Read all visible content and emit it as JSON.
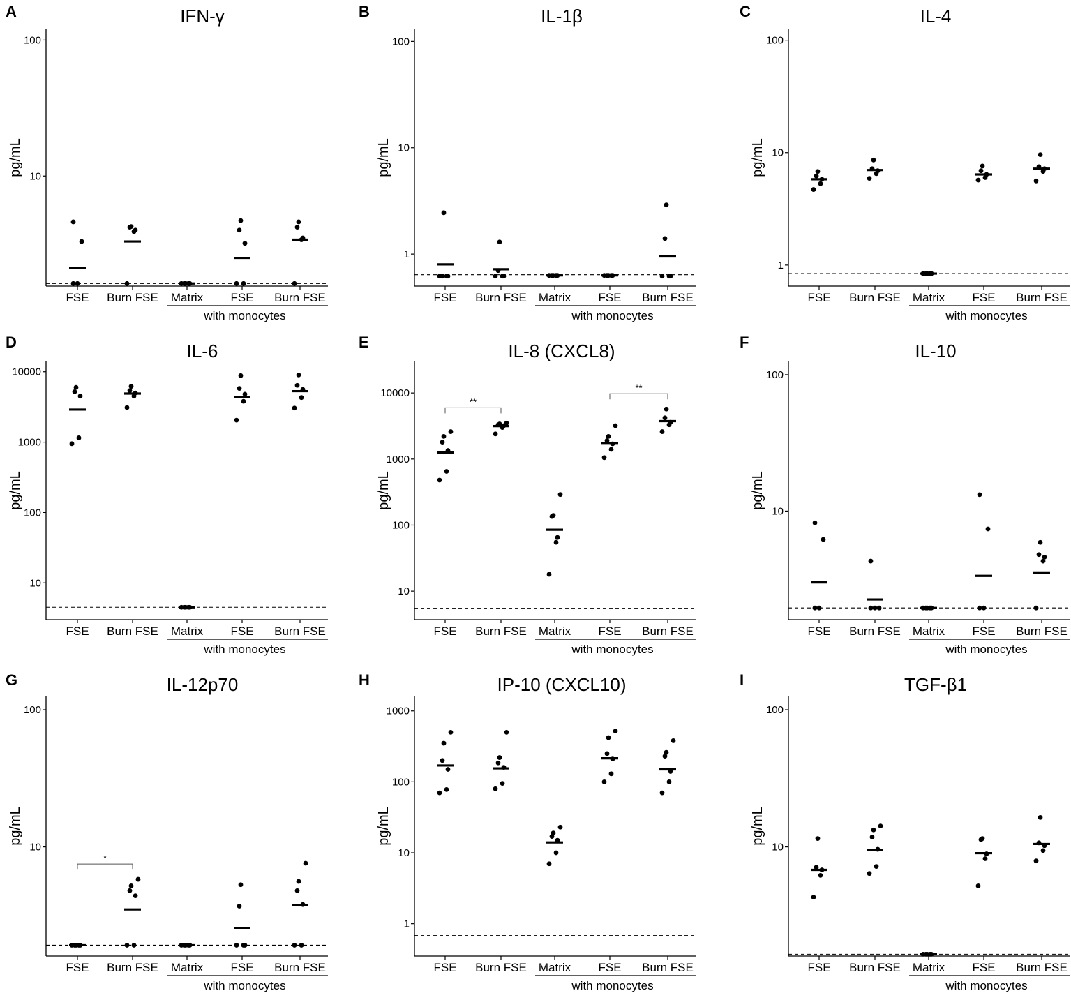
{
  "figure": {
    "x_categories": [
      "FSE",
      "Burn FSE",
      "Matrix",
      "FSE",
      "Burn FSE"
    ],
    "group_label": "with monocytes"
  },
  "chart_data": [
    {
      "type": "scatter",
      "panel": "A",
      "title": "IFN-γ",
      "ylabel": "pg/mL",
      "scale": "log",
      "ylim": [
        1.55,
        120
      ],
      "yticks": [
        {
          "v": 10,
          "label": "10"
        },
        {
          "v": 100,
          "label": "100"
        }
      ],
      "lod": 1.62,
      "groups": [
        {
          "x": "FSE",
          "points": [
            1.62,
            1.62,
            3.3,
            4.6
          ],
          "median": 2.1
        },
        {
          "x": "Burn FSE",
          "points": [
            1.62,
            3.9,
            4.0,
            4.2,
            4.25
          ],
          "median": 3.3
        },
        {
          "x": "Matrix",
          "points": [
            1.62,
            1.62,
            1.62,
            1.62,
            1.62
          ],
          "median": 1.62
        },
        {
          "x": "FSE",
          "points": [
            1.62,
            1.62,
            3.2,
            4.0,
            4.7
          ],
          "median": 2.5
        },
        {
          "x": "Burn FSE",
          "points": [
            1.62,
            3.4,
            3.5,
            4.2,
            4.6
          ],
          "median": 3.4
        }
      ],
      "significance": []
    },
    {
      "type": "scatter",
      "panel": "B",
      "title": "IL-1β",
      "ylabel": "pg/mL",
      "scale": "log",
      "ylim": [
        0.5,
        130
      ],
      "yticks": [
        {
          "v": 1,
          "label": "1"
        },
        {
          "v": 10,
          "label": "10"
        },
        {
          "v": 100,
          "label": "100"
        }
      ],
      "lod": 0.64,
      "groups": [
        {
          "x": "FSE",
          "points": [
            0.62,
            0.62,
            0.62,
            0.62,
            2.45
          ],
          "median": 0.8
        },
        {
          "x": "Burn FSE",
          "points": [
            0.62,
            0.62,
            0.62,
            0.7,
            1.3
          ],
          "median": 0.72
        },
        {
          "x": "Matrix",
          "points": [
            0.63,
            0.63,
            0.63,
            0.63,
            0.63
          ],
          "median": 0.63
        },
        {
          "x": "FSE",
          "points": [
            0.63,
            0.63,
            0.63,
            0.63,
            0.63
          ],
          "median": 0.63
        },
        {
          "x": "Burn FSE",
          "points": [
            0.62,
            0.62,
            0.62,
            1.4,
            2.9
          ],
          "median": 0.95
        }
      ],
      "significance": []
    },
    {
      "type": "scatter",
      "panel": "C",
      "title": "IL-4",
      "ylabel": "pg/mL",
      "scale": "log",
      "ylim": [
        0.65,
        125
      ],
      "yticks": [
        {
          "v": 1,
          "label": "1"
        },
        {
          "v": 10,
          "label": "10"
        },
        {
          "v": 100,
          "label": "100"
        }
      ],
      "lod": 0.84,
      "groups": [
        {
          "x": "FSE",
          "points": [
            4.7,
            5.3,
            5.8,
            6.2,
            6.8
          ],
          "median": 5.8
        },
        {
          "x": "Burn FSE",
          "points": [
            5.9,
            6.5,
            6.9,
            7.2,
            8.6
          ],
          "median": 7.0
        },
        {
          "x": "Matrix",
          "points": [
            0.84,
            0.84,
            0.84,
            0.84,
            0.84
          ],
          "median": 0.84
        },
        {
          "x": "FSE",
          "points": [
            5.7,
            6.0,
            6.4,
            6.9,
            7.6
          ],
          "median": 6.4
        },
        {
          "x": "Burn FSE",
          "points": [
            5.6,
            6.8,
            7.2,
            7.5,
            9.6
          ],
          "median": 7.2
        }
      ],
      "significance": []
    },
    {
      "type": "scatter",
      "panel": "D",
      "title": "IL-6",
      "ylabel": "pg/mL",
      "scale": "log",
      "ylim": [
        3,
        14000
      ],
      "yticks": [
        {
          "v": 10,
          "label": "10"
        },
        {
          "v": 100,
          "label": "100"
        },
        {
          "v": 1000,
          "label": "1000"
        },
        {
          "v": 10000,
          "label": "10000"
        }
      ],
      "lod": 4.5,
      "groups": [
        {
          "x": "FSE",
          "points": [
            950,
            1150,
            4500,
            5200,
            6000
          ],
          "median": 2900
        },
        {
          "x": "Burn FSE",
          "points": [
            3100,
            4500,
            5000,
            5400,
            6200
          ],
          "median": 4900
        },
        {
          "x": "Matrix",
          "points": [
            4.5,
            4.5,
            4.5,
            4.5,
            4.5
          ],
          "median": 4.5
        },
        {
          "x": "FSE",
          "points": [
            2050,
            3800,
            4800,
            5800,
            8800
          ],
          "median": 4400
        },
        {
          "x": "Burn FSE",
          "points": [
            3050,
            4300,
            5600,
            6400,
            9000
          ],
          "median": 5300
        }
      ],
      "significance": []
    },
    {
      "type": "scatter",
      "panel": "E",
      "title": "IL-8 (CXCL8)",
      "ylabel": "pg/mL",
      "scale": "log",
      "ylim": [
        3.7,
        30000
      ],
      "yticks": [
        {
          "v": 10,
          "label": "10"
        },
        {
          "v": 100,
          "label": "100"
        },
        {
          "v": 1000,
          "label": "1000"
        },
        {
          "v": 10000,
          "label": "10000"
        }
      ],
      "lod": 5.5,
      "groups": [
        {
          "x": "FSE",
          "points": [
            480,
            650,
            1350,
            1800,
            2200,
            2600
          ],
          "median": 1250
        },
        {
          "x": "Burn FSE",
          "points": [
            2400,
            3000,
            3200,
            3300,
            3400,
            3500
          ],
          "median": 3150
        },
        {
          "x": "Matrix",
          "points": [
            18,
            55,
            65,
            135,
            140,
            290
          ],
          "median": 85
        },
        {
          "x": "FSE",
          "points": [
            1050,
            1400,
            1700,
            1900,
            2200,
            3200
          ],
          "median": 1750
        },
        {
          "x": "Burn FSE",
          "points": [
            2600,
            3300,
            3600,
            4200,
            5700
          ],
          "median": 3750
        }
      ],
      "significance": [
        {
          "from": 0,
          "to": 1,
          "label": "**"
        },
        {
          "from": 3,
          "to": 4,
          "label": "**"
        }
      ]
    },
    {
      "type": "scatter",
      "panel": "F",
      "title": "IL-10",
      "ylabel": "pg/mL",
      "scale": "log",
      "ylim": [
        1.6,
        125
      ],
      "yticks": [
        {
          "v": 10,
          "label": "10"
        },
        {
          "v": 100,
          "label": "100"
        }
      ],
      "lod": 1.95,
      "groups": [
        {
          "x": "FSE",
          "points": [
            1.95,
            1.95,
            6.2,
            8.2
          ],
          "median": 3.0
        },
        {
          "x": "Burn FSE",
          "points": [
            1.95,
            1.95,
            1.95,
            4.3
          ],
          "median": 2.25
        },
        {
          "x": "Matrix",
          "points": [
            1.95,
            1.95,
            1.95,
            1.95,
            1.95
          ],
          "median": 1.95
        },
        {
          "x": "FSE",
          "points": [
            1.95,
            1.95,
            7.4,
            13.2
          ],
          "median": 3.35
        },
        {
          "x": "Burn FSE",
          "points": [
            1.95,
            4.3,
            4.6,
            4.8,
            5.9
          ],
          "median": 3.55
        }
      ],
      "significance": []
    },
    {
      "type": "scatter",
      "panel": "G",
      "title": "IL-12p70",
      "ylabel": "pg/mL",
      "scale": "log",
      "ylim": [
        1.6,
        125
      ],
      "yticks": [
        {
          "v": 10,
          "label": "10"
        },
        {
          "v": 100,
          "label": "100"
        }
      ],
      "lod": 1.92,
      "groups": [
        {
          "x": "FSE",
          "points": [
            1.92,
            1.92,
            1.92,
            1.92,
            1.92
          ],
          "median": 1.92
        },
        {
          "x": "Burn FSE",
          "points": [
            1.92,
            1.92,
            4.4,
            4.8,
            5.2,
            5.8
          ],
          "median": 3.5
        },
        {
          "x": "Matrix",
          "points": [
            1.92,
            1.92,
            1.92,
            1.92,
            1.92
          ],
          "median": 1.92
        },
        {
          "x": "FSE",
          "points": [
            1.92,
            1.92,
            1.92,
            3.7,
            5.3
          ],
          "median": 2.55
        },
        {
          "x": "Burn FSE",
          "points": [
            1.92,
            1.92,
            3.8,
            4.8,
            5.6,
            7.6
          ],
          "median": 3.75
        }
      ],
      "significance": [
        {
          "from": 0,
          "to": 1,
          "label": "*"
        }
      ]
    },
    {
      "type": "scatter",
      "panel": "H",
      "title": "IP-10 (CXCL10)",
      "ylabel": "pg/mL",
      "scale": "log",
      "ylim": [
        0.35,
        1600
      ],
      "yticks": [
        {
          "v": 1,
          "label": "1"
        },
        {
          "v": 10,
          "label": "10"
        },
        {
          "v": 100,
          "label": "100"
        },
        {
          "v": 1000,
          "label": "1000"
        }
      ],
      "lod": 0.68,
      "groups": [
        {
          "x": "FSE",
          "points": [
            70,
            78,
            150,
            200,
            350,
            500
          ],
          "median": 170
        },
        {
          "x": "Burn FSE",
          "points": [
            80,
            95,
            160,
            185,
            220,
            500
          ],
          "median": 155
        },
        {
          "x": "Matrix",
          "points": [
            7,
            10,
            15,
            17,
            19,
            23
          ],
          "median": 14
        },
        {
          "x": "FSE",
          "points": [
            100,
            130,
            210,
            250,
            420,
            520
          ],
          "median": 215
        },
        {
          "x": "Burn FSE",
          "points": [
            70,
            100,
            140,
            230,
            260,
            380
          ],
          "median": 150
        }
      ],
      "significance": []
    },
    {
      "type": "scatter",
      "panel": "I",
      "title": "TGF-β1",
      "ylabel": "pg/mL",
      "scale": "log",
      "ylim": [
        1.6,
        125
      ],
      "yticks": [
        {
          "v": 10,
          "label": "10"
        },
        {
          "v": 100,
          "label": "100"
        }
      ],
      "lod": 1.65,
      "groups": [
        {
          "x": "FSE",
          "points": [
            4.3,
            6.2,
            6.8,
            7.1,
            11.5
          ],
          "median": 6.8
        },
        {
          "x": "Burn FSE",
          "points": [
            6.4,
            7.2,
            9.6,
            11.8,
            13.3,
            14.2
          ],
          "median": 9.5
        },
        {
          "x": "Matrix",
          "points": [
            1.65,
            1.65,
            1.65,
            1.65,
            1.65
          ],
          "median": 1.65
        },
        {
          "x": "FSE",
          "points": [
            5.2,
            8.2,
            8.9,
            11.3,
            11.5
          ],
          "median": 9.0
        },
        {
          "x": "Burn FSE",
          "points": [
            7.9,
            9.4,
            10.2,
            10.7,
            16.4
          ],
          "median": 10.5
        }
      ],
      "significance": []
    }
  ]
}
